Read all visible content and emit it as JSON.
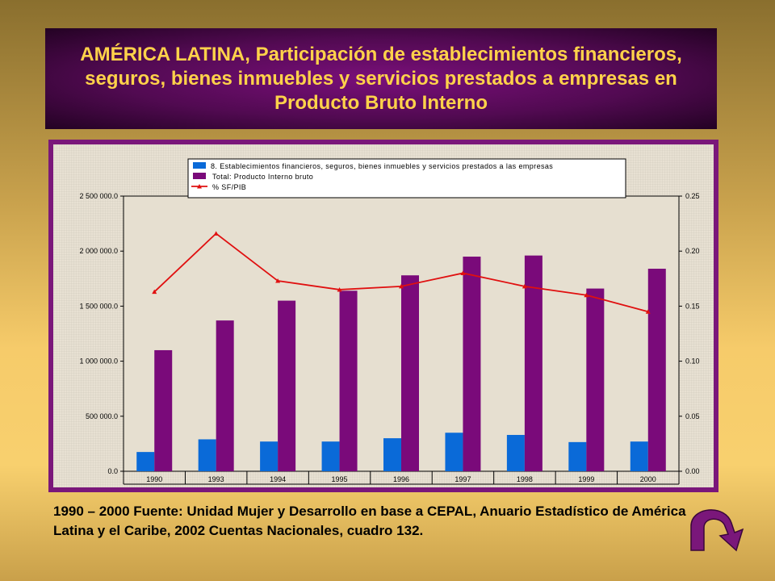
{
  "title": "AMÉRICA LATINA, Participación de establecimientos financieros, seguros, bienes inmuebles y servicios prestados a empresas en Producto Bruto Interno",
  "source": "1990 – 2000 Fuente: Unidad Mujer y Desarrollo en base a CEPAL, Anuario Estadístico de América Latina y el Caribe, 2002 Cuentas Nacionales, cuadro 132.",
  "return_button": {
    "icon": "curved-arrow-down-icon",
    "color": "#7a177a"
  },
  "chart_data": {
    "type": "bar",
    "categories": [
      "1990",
      "1993",
      "1994",
      "1995",
      "1996",
      "1997",
      "1998",
      "1999",
      "2000"
    ],
    "series": [
      {
        "name": "8. Establecimientos financieros, seguros, bienes inmuebles y servicios prestados a las empresas",
        "type": "bar",
        "axis": "left",
        "color": "#0a6ad8",
        "values": [
          175000,
          290000,
          270000,
          270000,
          300000,
          350000,
          330000,
          265000,
          270000
        ]
      },
      {
        "name": "Total: Producto Interno bruto",
        "type": "bar",
        "axis": "left",
        "color": "#7a0a7a",
        "values": [
          1100000,
          1370000,
          1550000,
          1640000,
          1780000,
          1950000,
          1960000,
          1660000,
          1840000
        ]
      },
      {
        "name": "% SF/PIB",
        "type": "line",
        "axis": "right",
        "color": "#e01010",
        "values": [
          0.163,
          0.216,
          0.173,
          0.165,
          0.168,
          0.18,
          0.168,
          0.16,
          0.145
        ]
      }
    ],
    "ylim_left": [
      0,
      2500000
    ],
    "yticks_left": [
      "0.0",
      "500 000.0",
      "1 000 000.0",
      "1 500 000.0",
      "2 000 000.0",
      "2 500 000.0"
    ],
    "ylim_right": [
      0,
      0.25
    ],
    "yticks_right": [
      "0.00",
      "0.05",
      "0.10",
      "0.15",
      "0.20",
      "0.25"
    ],
    "legend_position": "top",
    "grid": false
  }
}
